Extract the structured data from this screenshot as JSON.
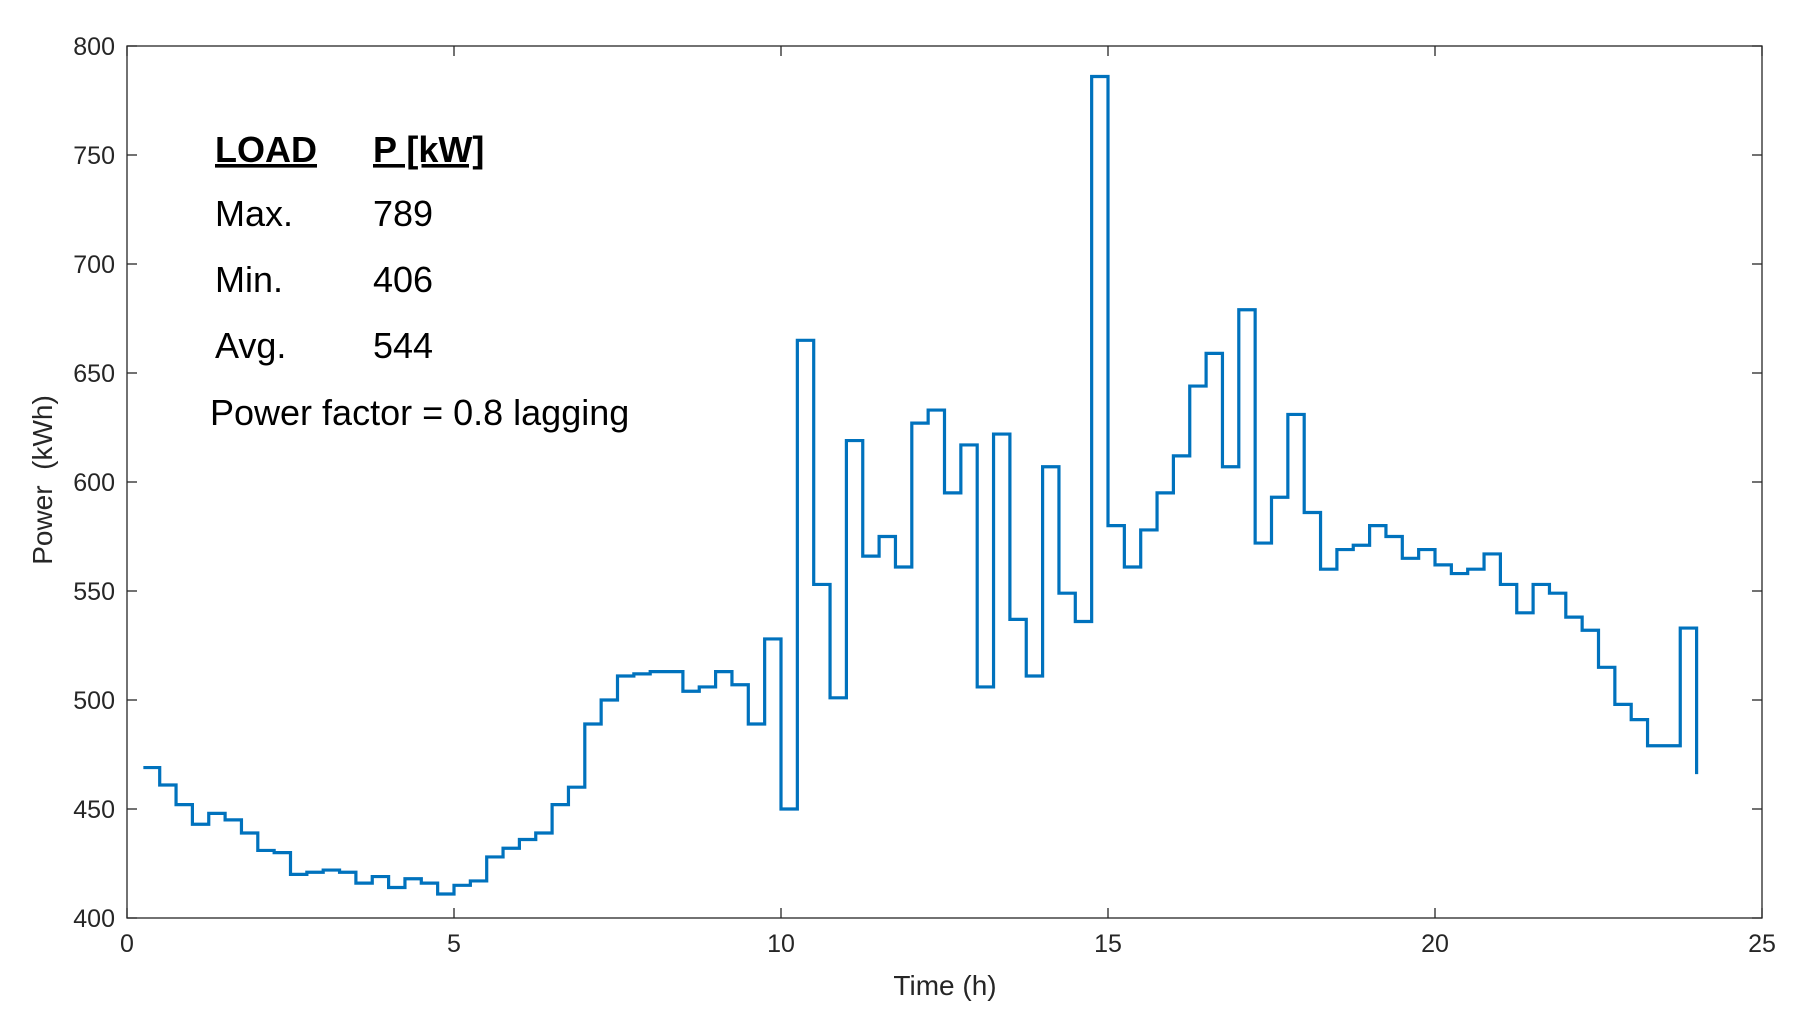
{
  "chart_data": {
    "type": "line",
    "step": true,
    "xlabel": "Time (h)",
    "ylabel": "Power  (kWh)",
    "xlim": [
      0,
      25
    ],
    "ylim": [
      400,
      800
    ],
    "xticks": [
      0,
      5,
      10,
      15,
      20,
      25
    ],
    "yticks": [
      400,
      450,
      500,
      550,
      600,
      650,
      700,
      750,
      800
    ],
    "grid": false,
    "line_color": "#0072BD",
    "series": [
      {
        "x": [
          0.25,
          0.5,
          0.75,
          1.0,
          1.25,
          1.5,
          1.75,
          2.0,
          2.25,
          2.5,
          2.75,
          3.0,
          3.25,
          3.5,
          3.75,
          4.0,
          4.25,
          4.5,
          4.75,
          5.0,
          5.25,
          5.5,
          5.75,
          6.0,
          6.25,
          6.5,
          6.75,
          7.0,
          7.25,
          7.5,
          7.75,
          8.0,
          8.25,
          8.5,
          8.75,
          9.0,
          9.25,
          9.5,
          9.75,
          10.0,
          10.25,
          10.5,
          10.75,
          11.0,
          11.25,
          11.5,
          11.75,
          12.0,
          12.25,
          12.5,
          12.75,
          13.0,
          13.25,
          13.5,
          13.75,
          14.0,
          14.25,
          14.5,
          14.75,
          15.0,
          15.25,
          15.5,
          15.75,
          16.0,
          16.25,
          16.5,
          16.75,
          17.0,
          17.25,
          17.5,
          17.75,
          18.0,
          18.25,
          18.5,
          18.75,
          19.0,
          19.25,
          19.5,
          19.75,
          20.0,
          20.25,
          20.5,
          20.75,
          21.0,
          21.25,
          21.5,
          21.75,
          22.0,
          22.25,
          22.5,
          22.75,
          23.0,
          23.25,
          23.5,
          23.75,
          24.0
        ],
        "values": [
          469,
          461,
          452,
          443,
          448,
          445,
          439,
          431,
          430,
          420,
          421,
          422,
          421,
          416,
          419,
          414,
          418,
          416,
          411,
          415,
          417,
          428,
          432,
          436,
          439,
          452,
          460,
          489,
          500,
          511,
          512,
          513,
          513,
          504,
          506,
          513,
          507,
          489,
          528,
          450,
          665,
          553,
          501,
          619,
          566,
          575,
          561,
          627,
          633,
          595,
          617,
          506,
          622,
          537,
          511,
          607,
          549,
          536,
          786,
          580,
          561,
          578,
          595,
          612,
          644,
          659,
          607,
          679,
          572,
          593,
          631,
          586,
          560,
          569,
          571,
          580,
          575,
          565,
          569,
          562,
          558,
          560,
          567,
          553,
          540,
          553,
          549,
          538,
          532,
          515,
          498,
          491,
          479,
          479,
          533,
          466
        ]
      }
    ]
  },
  "annotation": {
    "header_load": "LOAD",
    "header_p": "P [kW]",
    "rows": [
      {
        "label": "Max.",
        "value": "789"
      },
      {
        "label": "Min.",
        "value": "406"
      },
      {
        "label": "Avg.",
        "value": "544"
      }
    ],
    "power_factor": "Power factor = 0.8 lagging"
  }
}
